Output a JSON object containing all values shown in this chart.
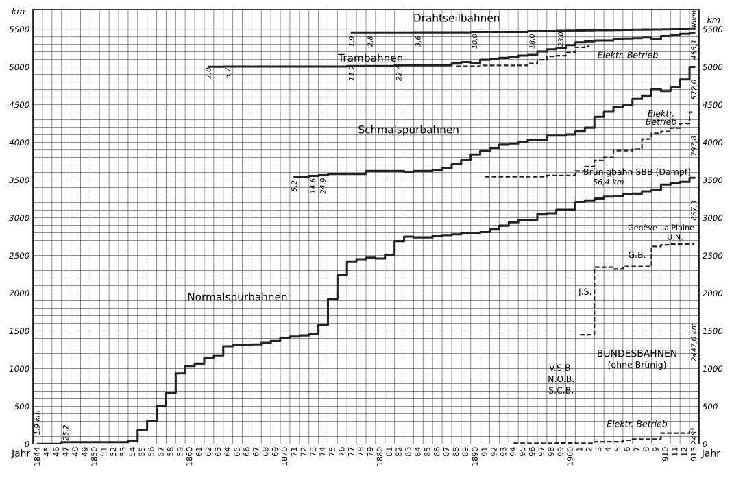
{
  "chart_data": {
    "type": "step",
    "xlabel": "Jahr",
    "ylabel": "km",
    "y2label": "km",
    "categories": [
      "1844",
      "45",
      "46",
      "47",
      "48",
      "49",
      "1850",
      "51",
      "52",
      "53",
      "54",
      "55",
      "56",
      "57",
      "58",
      "59",
      "1860",
      "61",
      "62",
      "63",
      "64",
      "65",
      "66",
      "67",
      "68",
      "69",
      "1870",
      "71",
      "72",
      "73",
      "74",
      "75",
      "76",
      "77",
      "78",
      "79",
      "1880",
      "81",
      "82",
      "83",
      "84",
      "85",
      "86",
      "87",
      "88",
      "89",
      "1890",
      "91",
      "92",
      "93",
      "94",
      "95",
      "96",
      "97",
      "98",
      "99",
      "1900",
      "1",
      "2",
      "3",
      "4",
      "5",
      "6",
      "7",
      "8",
      "9",
      "910",
      "11",
      "12",
      "913"
    ],
    "series": [
      {
        "color": "#222222",
        "line_style": "solid",
        "values": [
          1.9,
          1.9,
          1.9,
          25.2,
          25.2,
          25.2,
          25.2,
          25.2,
          25.2,
          25.2,
          40,
          190,
          310,
          500,
          680,
          935,
          1035,
          1065,
          1145,
          1175,
          1295,
          1315,
          1315,
          1320,
          1340,
          1365,
          1410,
          1425,
          1440,
          1455,
          1580,
          1925,
          2240,
          2420,
          2450,
          2470,
          2460,
          2510,
          2690,
          2750,
          2740,
          2740,
          2760,
          2770,
          2780,
          2800,
          2800,
          2810,
          2845,
          2895,
          2940,
          2970,
          2970,
          3045,
          3060,
          3105,
          3105,
          3210,
          3230,
          3255,
          3280,
          3290,
          3310,
          3320,
          3350,
          3365,
          3440,
          3460,
          3475,
          3530
        ]
      },
      {
        "color": "#222222",
        "line_style": "solid",
        "values": [
          null,
          null,
          null,
          null,
          null,
          null,
          null,
          null,
          null,
          null,
          null,
          null,
          null,
          null,
          null,
          null,
          null,
          null,
          null,
          null,
          null,
          null,
          null,
          null,
          null,
          null,
          null,
          3545,
          3545,
          3555,
          3565,
          3580,
          3580,
          3580,
          3580,
          3620,
          3620,
          3620,
          3620,
          3605,
          3620,
          3620,
          3635,
          3660,
          3710,
          3765,
          3840,
          3885,
          3925,
          3970,
          3985,
          4000,
          4035,
          4035,
          4090,
          4090,
          4105,
          4145,
          4195,
          4340,
          4405,
          4470,
          4500,
          4575,
          4620,
          4705,
          4680,
          4735,
          4835,
          5000
        ]
      },
      {
        "color": "#222222",
        "line_style": "dashed",
        "values": [
          null,
          null,
          null,
          null,
          null,
          null,
          null,
          null,
          null,
          null,
          null,
          null,
          null,
          null,
          null,
          null,
          null,
          null,
          null,
          null,
          null,
          null,
          null,
          null,
          null,
          null,
          null,
          null,
          null,
          null,
          null,
          null,
          null,
          null,
          null,
          null,
          null,
          null,
          null,
          null,
          null,
          null,
          null,
          null,
          null,
          null,
          null,
          3545,
          3545,
          3545,
          3545,
          3545,
          3545,
          3545,
          3560,
          3560,
          3560,
          3620,
          3680,
          3760,
          3800,
          3890,
          3890,
          3910,
          4045,
          4120,
          4145,
          4190,
          4250,
          4400
        ]
      },
      {
        "color": "#222222",
        "line_style": "solid",
        "values": [
          null,
          null,
          null,
          null,
          null,
          null,
          null,
          null,
          null,
          null,
          null,
          null,
          null,
          null,
          null,
          null,
          null,
          null,
          5003,
          5003,
          5006,
          5006,
          5006,
          5006,
          5006,
          5006,
          5006,
          5006,
          5006,
          5006,
          5006,
          5006,
          5006,
          5012,
          5012,
          5012,
          5012,
          5012,
          5022,
          5022,
          5022,
          5022,
          5022,
          5022,
          5045,
          5065,
          5050,
          5095,
          5105,
          5120,
          5135,
          5150,
          5160,
          5205,
          5235,
          5250,
          5290,
          5325,
          5340,
          5350,
          5350,
          5365,
          5375,
          5380,
          5390,
          5365,
          5410,
          5425,
          5440,
          5455
        ]
      },
      {
        "color": "#222222",
        "line_style": "dashed",
        "values": [
          null,
          null,
          null,
          null,
          null,
          null,
          null,
          null,
          null,
          null,
          null,
          null,
          null,
          null,
          null,
          null,
          null,
          null,
          null,
          null,
          null,
          null,
          null,
          null,
          null,
          null,
          null,
          null,
          null,
          null,
          null,
          null,
          null,
          null,
          null,
          null,
          null,
          null,
          null,
          null,
          null,
          null,
          null,
          null,
          5010,
          5010,
          5010,
          5020,
          5020,
          5020,
          5020,
          5020,
          5045,
          5095,
          5140,
          5150,
          5190,
          5260,
          5275,
          null,
          null,
          null,
          null,
          null,
          null,
          null,
          null,
          null,
          null,
          null
        ]
      },
      {
        "color": "#222222",
        "line_style": "solid",
        "values": [
          null,
          null,
          null,
          null,
          null,
          null,
          null,
          null,
          null,
          null,
          null,
          null,
          null,
          null,
          null,
          null,
          null,
          null,
          null,
          null,
          null,
          null,
          null,
          null,
          null,
          null,
          null,
          null,
          null,
          null,
          null,
          null,
          null,
          5457,
          5457,
          5458,
          5458,
          5458,
          5458,
          5458,
          5459,
          5459,
          5459,
          5459,
          5459,
          5459,
          5465,
          5465,
          5465,
          5465,
          5465,
          5465,
          5473,
          5473,
          5473,
          5478,
          5480,
          5483,
          5485,
          5487,
          5488,
          5490,
          5492,
          5494,
          5495,
          5496,
          5498,
          5500,
          5501,
          5503
        ]
      },
      {
        "color": "#222222",
        "line_style": "dashed",
        "values": [
          null,
          null,
          null,
          null,
          null,
          null,
          null,
          null,
          null,
          null,
          null,
          null,
          null,
          null,
          null,
          null,
          null,
          null,
          null,
          null,
          null,
          null,
          null,
          null,
          null,
          null,
          null,
          null,
          null,
          null,
          null,
          null,
          null,
          null,
          null,
          null,
          null,
          null,
          null,
          null,
          null,
          null,
          null,
          null,
          null,
          null,
          null,
          null,
          null,
          null,
          null,
          null,
          null,
          null,
          null,
          null,
          null,
          1450,
          1450,
          2345,
          2345,
          2320,
          2355,
          2355,
          2355,
          2620,
          2640,
          2650,
          2650,
          2650
        ]
      },
      {
        "color": "#222222",
        "line_style": "dashed",
        "values": [
          null,
          null,
          null,
          null,
          null,
          null,
          null,
          null,
          null,
          null,
          null,
          null,
          null,
          null,
          null,
          null,
          null,
          null,
          null,
          null,
          null,
          null,
          null,
          null,
          null,
          null,
          null,
          null,
          null,
          null,
          null,
          null,
          null,
          null,
          null,
          null,
          null,
          null,
          null,
          null,
          null,
          null,
          null,
          null,
          null,
          null,
          null,
          null,
          null,
          null,
          10,
          10,
          10,
          10,
          10,
          15,
          15,
          10,
          10,
          30,
          30,
          30,
          50,
          65,
          65,
          65,
          145,
          145,
          145,
          200
        ]
      }
    ],
    "ylim": [
      0,
      5760
    ],
    "y2lim": [
      0,
      5760
    ],
    "yticks": [
      0,
      {
        "value": 100,
        "label": null
      },
      {
        "value": 200,
        "label": null
      },
      {
        "value": 300,
        "label": null
      },
      {
        "value": 400,
        "label": null
      },
      500,
      {
        "value": 600,
        "label": null
      },
      {
        "value": 700,
        "label": null
      },
      {
        "value": 800,
        "label": null
      },
      {
        "value": 900,
        "label": null
      },
      1000,
      {
        "value": 1100,
        "label": null
      },
      {
        "value": 1200,
        "label": null
      },
      {
        "value": 1300,
        "label": null
      },
      {
        "value": 1400,
        "label": null
      },
      1500,
      {
        "value": 1600,
        "label": null
      },
      {
        "value": 1700,
        "label": null
      },
      {
        "value": 1800,
        "label": null
      },
      {
        "value": 1900,
        "label": null
      },
      2000,
      {
        "value": 2100,
        "label": null
      },
      {
        "value": 2200,
        "label": null
      },
      {
        "value": 2300,
        "label": null
      },
      {
        "value": 2400,
        "label": null
      },
      2500,
      {
        "value": 2600,
        "label": null
      },
      {
        "value": 2700,
        "label": null
      },
      {
        "value": 2800,
        "label": null
      },
      {
        "value": 2900,
        "label": null
      },
      3000,
      {
        "value": 3100,
        "label": null
      },
      {
        "value": 3200,
        "label": null
      },
      {
        "value": 3300,
        "label": null
      },
      {
        "value": 3400,
        "label": null
      },
      3500,
      {
        "value": 3600,
        "label": null
      },
      {
        "value": 3700,
        "label": null
      },
      {
        "value": 3800,
        "label": null
      },
      {
        "value": 3900,
        "label": null
      },
      4000,
      {
        "value": 4100,
        "label": null
      },
      {
        "value": 4200,
        "label": null
      },
      {
        "value": 4300,
        "label": null
      },
      {
        "value": 4400,
        "label": null
      },
      4500,
      {
        "value": 4600,
        "label": null
      },
      {
        "value": 4700,
        "label": null
      },
      {
        "value": 4800,
        "label": null
      },
      {
        "value": 4900,
        "label": null
      },
      5000,
      {
        "value": 5100,
        "label": null
      },
      {
        "value": 5200,
        "label": null
      },
      {
        "value": 5300,
        "label": null
      },
      {
        "value": 5400,
        "label": null
      },
      5500
    ],
    "y2ticks": [
      0,
      500,
      1000,
      1500,
      2000,
      2500,
      3000,
      3500,
      4000,
      4500,
      5000,
      5500
    ],
    "grid": true,
    "annotations": [
      "Drahtseilbahnen",
      "Trambahnen",
      "Schmalspurbahnen",
      "Normalspurbahnen",
      "Elektr. Betrieb",
      "Elektr.\nBetrieb",
      "Brünigbahn SBB (Dampf)",
      "56,4 km",
      "BUNDESBAHNEN",
      "(ohne Brünig)",
      "V.S.B.",
      "N.O.B.",
      "S.C.B.",
      "J.S.",
      "G.B.",
      "Genève-La Plaine",
      "U.N.",
      "Elektr. Betrieb",
      "1,9 km",
      "25,2",
      "2,8",
      "5,7",
      "11,7",
      "22,4",
      "1,9",
      "2,8",
      "3,6",
      "10,0",
      "18,0",
      "23,0",
      "48km",
      "455,1",
      "572,0",
      "797,8",
      "867,3",
      "2447,0 km",
      "248",
      "5,2",
      "14,6",
      "24,9"
    ]
  }
}
